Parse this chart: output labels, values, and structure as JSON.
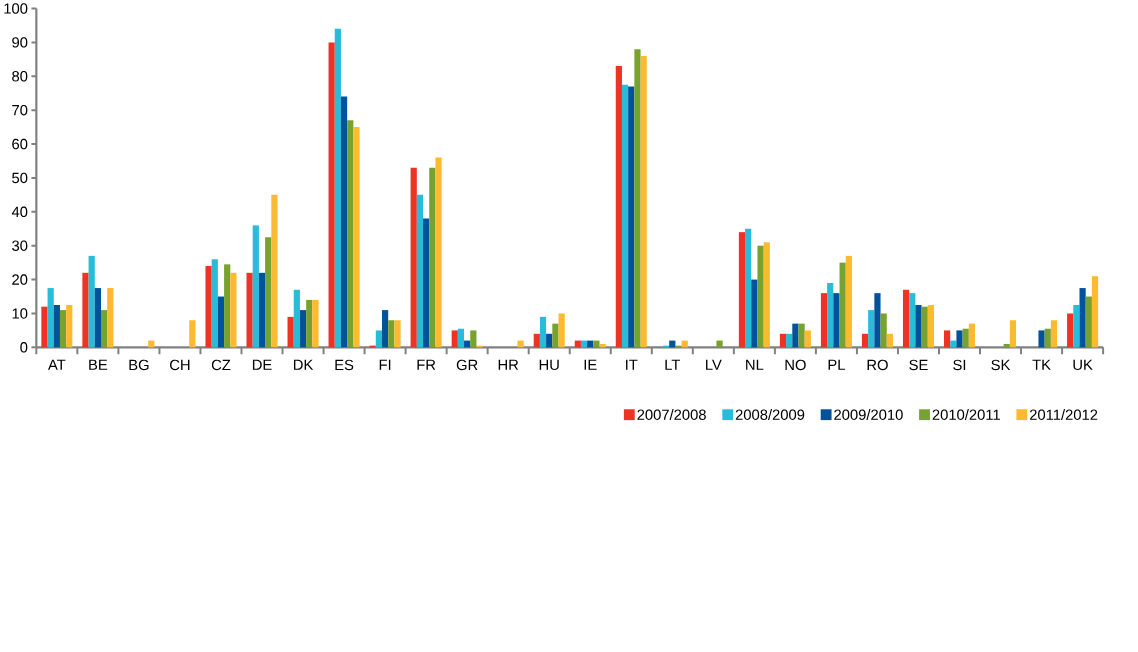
{
  "chart_data": {
    "type": "bar",
    "categories": [
      "AT",
      "BE",
      "BG",
      "CH",
      "CZ",
      "DE",
      "DK",
      "ES",
      "FI",
      "FR",
      "GR",
      "HR",
      "HU",
      "IE",
      "IT",
      "LT",
      "LV",
      "NL",
      "NO",
      "PL",
      "RO",
      "SE",
      "SI",
      "SK",
      "TK",
      "UK"
    ],
    "series": [
      {
        "name": "2007/2008",
        "color": "#ee3224",
        "values": [
          12,
          22,
          0,
          0,
          24,
          22,
          9,
          90,
          0.5,
          53,
          5,
          0,
          4,
          2,
          83,
          0,
          0,
          34,
          4,
          16,
          4,
          17,
          5,
          0,
          0,
          10
        ]
      },
      {
        "name": "2008/2009",
        "color": "#29bcd9",
        "values": [
          17.5,
          27,
          0,
          0,
          26,
          36,
          17,
          94,
          5,
          45,
          5.5,
          0,
          9,
          2,
          77.5,
          0.5,
          0,
          35,
          4,
          19,
          11,
          16,
          2,
          0,
          0,
          12.5
        ]
      },
      {
        "name": "2009/2010",
        "color": "#00539b",
        "values": [
          12.5,
          17.5,
          0,
          0,
          15,
          22,
          11,
          74,
          11,
          38,
          2,
          0,
          4,
          2,
          77,
          2,
          0,
          20,
          7,
          16,
          16,
          12.5,
          5,
          0,
          5,
          17.5
        ]
      },
      {
        "name": "2010/2011",
        "color": "#78a22f",
        "values": [
          11,
          11,
          0,
          0,
          24.5,
          32.5,
          14,
          67,
          8,
          53,
          5,
          0,
          7,
          2,
          88,
          0.5,
          2,
          30,
          7,
          25,
          10,
          12,
          5.5,
          1,
          5.5,
          15
        ]
      },
      {
        "name": "2011/2012",
        "color": "#fdb92f",
        "values": [
          12.5,
          17.5,
          2,
          8,
          22,
          45,
          14,
          65,
          8,
          56,
          0.5,
          2,
          10,
          1,
          86,
          2,
          0,
          31,
          5,
          27,
          4,
          12.5,
          7,
          8,
          8,
          21
        ]
      }
    ],
    "ylim": [
      0,
      100
    ],
    "yticks": [
      0,
      10,
      20,
      30,
      40,
      50,
      60,
      70,
      80,
      90,
      100
    ],
    "grid": false,
    "legend": "bottom right"
  }
}
